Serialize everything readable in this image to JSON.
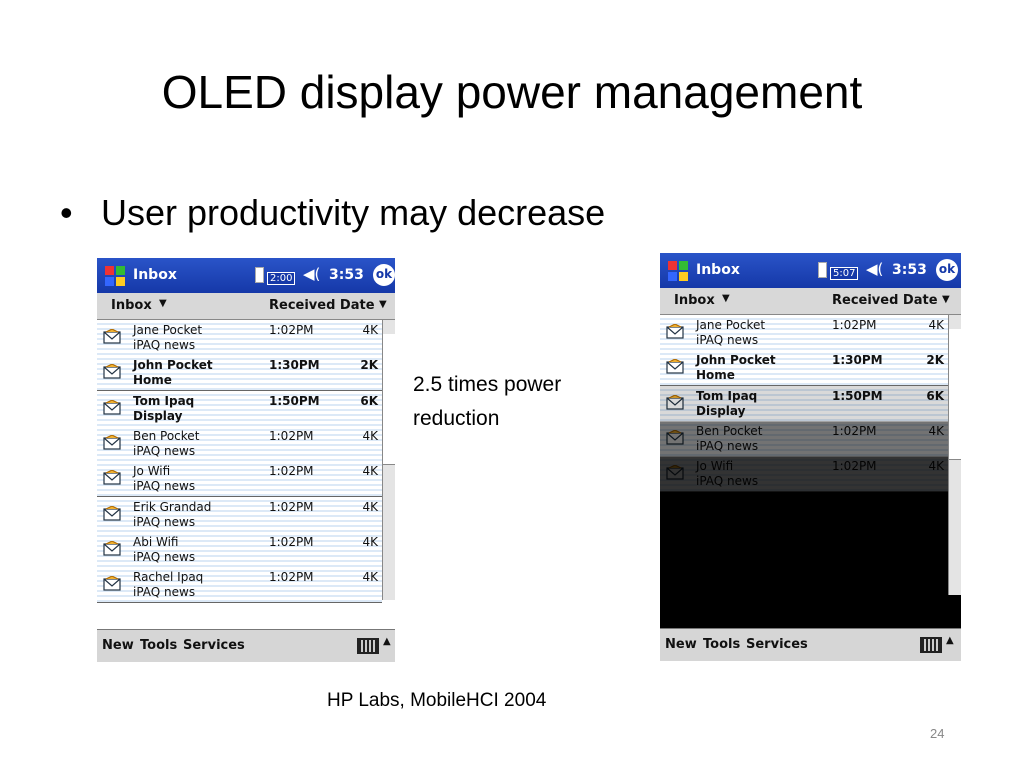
{
  "slide": {
    "title": "OLED display power management",
    "bullet": "User productivity may decrease",
    "note": "2.5 times power reduction",
    "source": "HP Labs, MobileHCI 2004",
    "page": "24"
  },
  "phones": [
    {
      "app": "Inbox",
      "battery": "2:00",
      "clock": "3:53",
      "ok": "ok",
      "folder": "Inbox",
      "sort": "Received Date",
      "menu": [
        "New",
        "Tools",
        "Services"
      ],
      "messages": [
        {
          "sender": "Jane Pocket",
          "subject": "iPAQ news",
          "time": "1:02PM",
          "size": "4K",
          "unread": false
        },
        {
          "sender": "John Pocket",
          "subject": "Home",
          "time": "1:30PM",
          "size": "2K",
          "unread": true
        },
        {
          "sender": "Tom Ipaq",
          "subject": "Display",
          "time": "1:50PM",
          "size": "6K",
          "unread": true
        },
        {
          "sender": "Ben Pocket",
          "subject": "iPAQ news",
          "time": "1:02PM",
          "size": "4K",
          "unread": false
        },
        {
          "sender": "Jo Wifi",
          "subject": "iPAQ news",
          "time": "1:02PM",
          "size": "4K",
          "unread": false
        },
        {
          "sender": "Erik Grandad",
          "subject": "iPAQ news",
          "time": "1:02PM",
          "size": "4K",
          "unread": false
        },
        {
          "sender": "Abi Wifi",
          "subject": "iPAQ news",
          "time": "1:02PM",
          "size": "4K",
          "unread": false
        },
        {
          "sender": "Rachel Ipaq",
          "subject": "iPAQ news",
          "time": "1:02PM",
          "size": "4K",
          "unread": false
        }
      ]
    },
    {
      "app": "Inbox",
      "battery": "5:07",
      "clock": "3:53",
      "ok": "ok",
      "folder": "Inbox",
      "sort": "Received Date",
      "menu": [
        "New",
        "Tools",
        "Services"
      ],
      "messages": [
        {
          "sender": "Jane Pocket",
          "subject": "iPAQ news",
          "time": "1:02PM",
          "size": "4K",
          "unread": false
        },
        {
          "sender": "John Pocket",
          "subject": "Home",
          "time": "1:30PM",
          "size": "2K",
          "unread": true
        },
        {
          "sender": "Tom Ipaq",
          "subject": "Display",
          "time": "1:50PM",
          "size": "6K",
          "unread": true
        },
        {
          "sender": "Ben Pocket",
          "subject": "iPAQ news",
          "time": "1:02PM",
          "size": "4K",
          "unread": false
        },
        {
          "sender": "Jo Wifi",
          "subject": "iPAQ news",
          "time": "1:02PM",
          "size": "4K",
          "unread": false
        }
      ]
    }
  ]
}
